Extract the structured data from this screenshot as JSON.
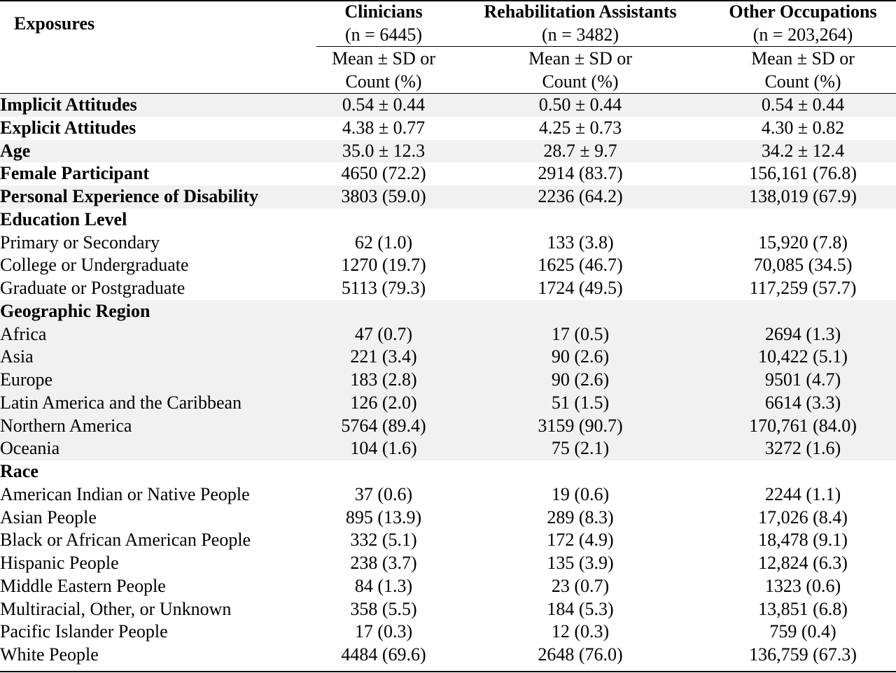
{
  "header": {
    "exposures_label": "Exposures",
    "columns": [
      {
        "name": "Clinicians",
        "n": "(n = 6445)",
        "stat_line1": "Mean ± SD or",
        "stat_line2": "Count (%)"
      },
      {
        "name": "Rehabilitation Assistants",
        "n": "(n = 3482)",
        "stat_line1": "Mean ± SD or",
        "stat_line2": "Count (%)"
      },
      {
        "name": "Other Occupations",
        "n": "(n = 203,264)",
        "stat_line1": "Mean ± SD or",
        "stat_line2": "Count (%)"
      }
    ]
  },
  "rows": [
    {
      "label": "Implicit Attitudes",
      "style": "b",
      "shade": true,
      "values": [
        "0.54 ± 0.44",
        "0.50 ± 0.44",
        "0.54 ± 0.44"
      ]
    },
    {
      "label": "Explicit Attitudes",
      "style": "b",
      "shade": false,
      "values": [
        "4.38 ± 0.77",
        "4.25 ± 0.73",
        "4.30 ± 0.82"
      ]
    },
    {
      "label": "Age",
      "style": "b",
      "shade": true,
      "values": [
        "35.0 ± 12.3",
        "28.7 ± 9.7",
        "34.2 ± 12.4"
      ]
    },
    {
      "label": "Female Participant",
      "style": "b",
      "shade": false,
      "values": [
        "4650 (72.2)",
        "2914 (83.7)",
        "156,161 (76.8)"
      ]
    },
    {
      "label": "Personal Experience of Disability",
      "style": "b",
      "shade": true,
      "values": [
        "3803 (59.0)",
        "2236 (64.2)",
        "138,019 (67.9)"
      ]
    },
    {
      "label": "Education Level",
      "style": "b",
      "shade": false,
      "values": [
        "",
        "",
        ""
      ]
    },
    {
      "label": "Primary or Secondary",
      "style": "ind",
      "shade": false,
      "values": [
        "62 (1.0)",
        "133 (3.8)",
        "15,920 (7.8)"
      ]
    },
    {
      "label": "College or Undergraduate",
      "style": "ind",
      "shade": false,
      "values": [
        "1270 (19.7)",
        "1625 (46.7)",
        "70,085 (34.5)"
      ]
    },
    {
      "label": "Graduate or Postgraduate",
      "style": "ind",
      "shade": false,
      "values": [
        "5113 (79.3)",
        "1724 (49.5)",
        "117,259 (57.7)"
      ]
    },
    {
      "label": "Geographic Region",
      "style": "b",
      "shade": true,
      "values": [
        "",
        "",
        ""
      ]
    },
    {
      "label": "Africa",
      "style": "ind",
      "shade": true,
      "values": [
        "47 (0.7)",
        "17 (0.5)",
        "2694 (1.3)"
      ]
    },
    {
      "label": "Asia",
      "style": "ind",
      "shade": true,
      "values": [
        "221 (3.4)",
        "90 (2.6)",
        "10,422 (5.1)"
      ]
    },
    {
      "label": "Europe",
      "style": "ind",
      "shade": true,
      "values": [
        "183 (2.8)",
        "90 (2.6)",
        "9501 (4.7)"
      ]
    },
    {
      "label": "Latin America and the Caribbean",
      "style": "ind",
      "shade": true,
      "values": [
        "126 (2.0)",
        "51 (1.5)",
        "6614 (3.3)"
      ]
    },
    {
      "label": "Northern America",
      "style": "ind",
      "shade": true,
      "values": [
        "5764 (89.4)",
        "3159 (90.7)",
        "170,761 (84.0)"
      ]
    },
    {
      "label": "Oceania",
      "style": "ind",
      "shade": true,
      "values": [
        "104 (1.6)",
        "75 (2.1)",
        "3272 (1.6)"
      ]
    },
    {
      "label": "Race",
      "style": "b",
      "shade": false,
      "values": [
        "",
        "",
        ""
      ]
    },
    {
      "label": "American Indian or Native People",
      "style": "ind",
      "shade": false,
      "values": [
        "37 (0.6)",
        "19 (0.6)",
        "2244 (1.1)"
      ]
    },
    {
      "label": "Asian People",
      "style": "ind",
      "shade": false,
      "values": [
        "895 (13.9)",
        "289 (8.3)",
        "17,026 (8.4)"
      ]
    },
    {
      "label": "Black or African American People",
      "style": "ind",
      "shade": false,
      "values": [
        "332 (5.1)",
        "172 (4.9)",
        "18,478 (9.1)"
      ]
    },
    {
      "label": "Hispanic People",
      "style": "ind",
      "shade": false,
      "values": [
        "238 (3.7)",
        "135 (3.9)",
        "12,824 (6.3)"
      ]
    },
    {
      "label": "Middle Eastern People",
      "style": "ind",
      "shade": false,
      "values": [
        "84 (1.3)",
        "23 (0.7)",
        "1323 (0.6)"
      ]
    },
    {
      "label": "Multiracial, Other, or Unknown",
      "style": "ind",
      "shade": false,
      "values": [
        "358 (5.5)",
        "184 (5.3)",
        "13,851 (6.8)"
      ]
    },
    {
      "label": "Pacific Islander People",
      "style": "ind",
      "shade": false,
      "values": [
        "17 (0.3)",
        "12 (0.3)",
        "759 (0.4)"
      ]
    },
    {
      "label": "White People",
      "style": "ind",
      "shade": false,
      "values": [
        "4484 (69.6)",
        "2648 (76.0)",
        "136,759 (67.3)"
      ]
    }
  ]
}
